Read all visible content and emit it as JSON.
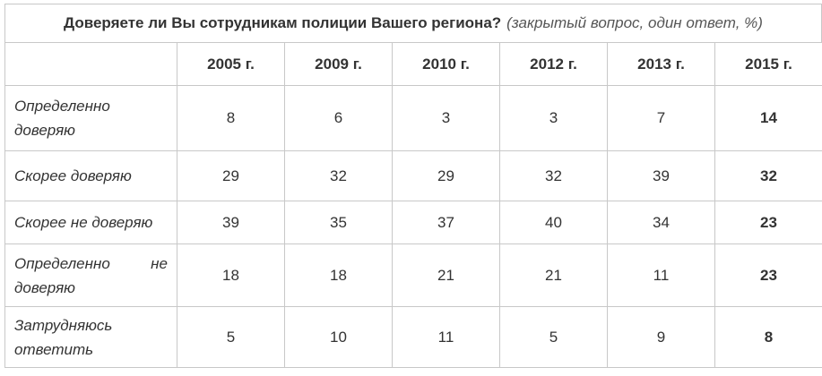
{
  "title": {
    "main": "Доверяете ли Вы сотрудникам полиции Вашего региона?",
    "note": "(закрытый вопрос, один ответ, %)"
  },
  "table": {
    "header": [
      "2005 г.",
      "2009 г.",
      "2010 г.",
      "2012 г.",
      "2013 г.",
      "2015 г."
    ],
    "rows": [
      {
        "label": "Определенно доверяю",
        "values": [
          8,
          6,
          3,
          3,
          7,
          14
        ]
      },
      {
        "label": "Скорее доверяю",
        "values": [
          29,
          32,
          29,
          32,
          39,
          32
        ]
      },
      {
        "label": "Скорее не доверяю",
        "values": [
          39,
          35,
          37,
          40,
          34,
          23
        ]
      },
      {
        "label": "Определенно не доверяю",
        "values": [
          18,
          18,
          21,
          21,
          11,
          23
        ]
      },
      {
        "label": "Затрудняюсь ответить",
        "values": [
          5,
          10,
          11,
          5,
          9,
          8
        ]
      }
    ]
  }
}
